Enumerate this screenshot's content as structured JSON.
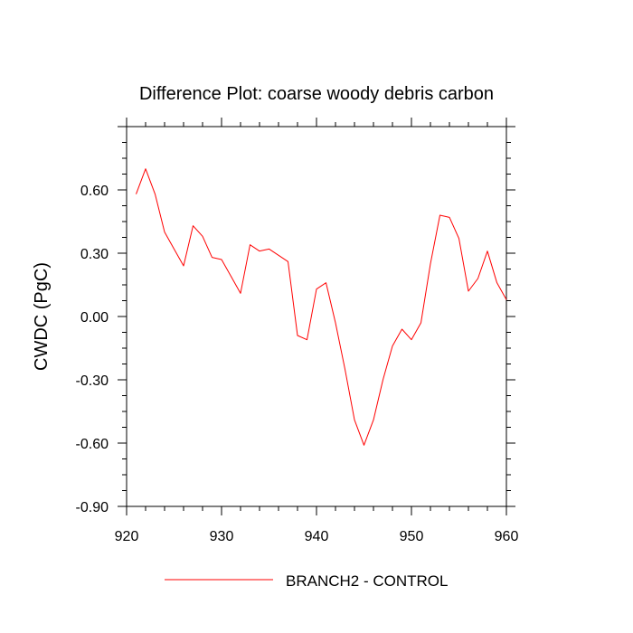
{
  "chart_data": {
    "type": "line",
    "title": "Difference Plot: coarse woody debris carbon",
    "ylabel": "CWDC  (PgC)",
    "xlabel": "",
    "xlim": [
      920,
      960
    ],
    "ylim": [
      -0.9,
      0.9
    ],
    "xticks": [
      920,
      930,
      940,
      950,
      960
    ],
    "xtick_labels": [
      "920",
      "930",
      "940",
      "950",
      "960"
    ],
    "yticks": [
      -0.9,
      -0.6,
      -0.3,
      0.0,
      0.3,
      0.6
    ],
    "ytick_labels": [
      "-0.90",
      "-0.60",
      "-0.30",
      "0.00",
      "0.30",
      "0.60"
    ],
    "legend_position": "bottom-center",
    "series": [
      {
        "name": "BRANCH2 - CONTROL",
        "color": "#ff0000",
        "x": [
          921,
          922,
          923,
          924,
          925,
          926,
          927,
          928,
          929,
          930,
          931,
          932,
          933,
          934,
          935,
          936,
          937,
          938,
          939,
          940,
          941,
          942,
          943,
          944,
          945,
          946,
          947,
          948,
          949,
          950,
          951,
          952,
          953,
          954,
          955,
          956,
          957,
          958,
          959,
          960
        ],
        "y": [
          0.58,
          0.7,
          0.58,
          0.4,
          0.32,
          0.24,
          0.43,
          0.38,
          0.28,
          0.27,
          0.19,
          0.11,
          0.34,
          0.31,
          0.32,
          0.29,
          0.26,
          -0.09,
          -0.11,
          0.13,
          0.16,
          -0.03,
          -0.25,
          -0.49,
          -0.61,
          -0.49,
          -0.3,
          -0.14,
          -0.06,
          -0.11,
          -0.03,
          0.25,
          0.48,
          0.47,
          0.37,
          0.12,
          0.18,
          0.31,
          0.16,
          0.08
        ]
      }
    ]
  }
}
